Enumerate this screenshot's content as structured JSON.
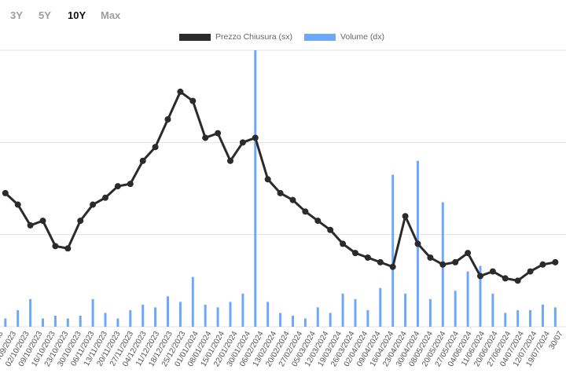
{
  "range_tabs": [
    {
      "label": "3Y",
      "active": false
    },
    {
      "label": "5Y",
      "active": false
    },
    {
      "label": "10Y",
      "active": true
    },
    {
      "label": "Max",
      "active": false
    }
  ],
  "colors": {
    "price": "#2b2b2b",
    "volume": "#6ea8fe",
    "grid": "#e3e3e3",
    "tab_inactive": "#9e9e9e",
    "tab_active": "#111111"
  },
  "chart_data": {
    "type": "line",
    "series": [
      {
        "name": "Prezzo Chiusura (sx)",
        "kind": "line",
        "axis": "left",
        "x": [
          "2023-09-18",
          "2023-09-25",
          "2023-10-02",
          "2023-10-09",
          "2023-10-16",
          "2023-10-23",
          "2023-10-30",
          "2023-11-06",
          "2023-11-13",
          "2023-11-20",
          "2023-11-27",
          "2023-12-04",
          "2023-12-11",
          "2023-12-18",
          "2023-12-25",
          "2024-01-01",
          "2024-01-08",
          "2024-01-15",
          "2024-01-22",
          "2024-01-29",
          "2024-02-05",
          "2024-02-12",
          "2024-02-19",
          "2024-02-26",
          "2024-03-04",
          "2024-03-11",
          "2024-03-18",
          "2024-03-25",
          "2024-04-01",
          "2024-04-08",
          "2024-04-15",
          "2024-04-22",
          "2024-04-29",
          "2024-05-06",
          "2024-05-13",
          "2024-05-20",
          "2024-05-27",
          "2024-06-03",
          "2024-06-10",
          "2024-06-17",
          "2024-06-24",
          "2024-07-01",
          "2024-07-08",
          "2024-07-15",
          "2024-07-22"
        ],
        "values": [
          59,
          56.5,
          52,
          53,
          47.5,
          47,
          53,
          56.5,
          58,
          60.5,
          61,
          66,
          69,
          75,
          81,
          79,
          71,
          72,
          66,
          70,
          71,
          62,
          59,
          57.5,
          55,
          53,
          51,
          48,
          46,
          45,
          44,
          43,
          54,
          48,
          45,
          43.5,
          44,
          46,
          41,
          42,
          40.5,
          40,
          42,
          43.5,
          44
        ]
      },
      {
        "name": "Volume (dx)",
        "kind": "bar",
        "axis": "right",
        "x": [
          "2023-09-18",
          "2023-09-25",
          "2023-10-02",
          "2023-10-09",
          "2023-10-16",
          "2023-10-23",
          "2023-10-30",
          "2023-11-06",
          "2023-11-13",
          "2023-11-20",
          "2023-11-27",
          "2023-12-04",
          "2023-12-11",
          "2023-12-18",
          "2023-12-25",
          "2024-01-01",
          "2024-01-08",
          "2024-01-15",
          "2024-01-22",
          "2024-01-29",
          "2024-02-05",
          "2024-02-12",
          "2024-02-19",
          "2024-02-26",
          "2024-03-04",
          "2024-03-11",
          "2024-03-18",
          "2024-03-25",
          "2024-04-01",
          "2024-04-08",
          "2024-04-15",
          "2024-04-22",
          "2024-04-29",
          "2024-05-06",
          "2024-05-13",
          "2024-05-20",
          "2024-05-27",
          "2024-06-03",
          "2024-06-10",
          "2024-06-17",
          "2024-06-24",
          "2024-07-01",
          "2024-07-08",
          "2024-07-15",
          "2024-07-22"
        ],
        "values": [
          3,
          6,
          10,
          3,
          4,
          3,
          4,
          10,
          5,
          3,
          6,
          8,
          7,
          11,
          9,
          18,
          8,
          7,
          9,
          12,
          100,
          9,
          5,
          4,
          3,
          7,
          5,
          12,
          10,
          6,
          14,
          55,
          12,
          60,
          10,
          45,
          13,
          20,
          22,
          12,
          5,
          6,
          6,
          8,
          7
        ]
      }
    ],
    "x_tick_labels": [
      "/09/2023",
      "25/09/2023",
      "02/10/2023",
      "09/10/2023",
      "16/10/2023",
      "23/10/2023",
      "30/10/2023",
      "06/11/2023",
      "13/11/2023",
      "20/11/2023",
      "27/11/2023",
      "04/12/2023",
      "11/12/2023",
      "18/12/2023",
      "25/12/2023",
      "01/01/2024",
      "08/01/2024",
      "15/01/2024",
      "22/01/2024",
      "30/01/2024",
      "06/02/2024",
      "13/02/2024",
      "20/02/2024",
      "27/02/2024",
      "05/03/2024",
      "12/03/2024",
      "19/03/2024",
      "26/03/2024",
      "02/04/2024",
      "09/04/2024",
      "16/04/2024",
      "23/04/2024",
      "30/04/2024",
      "08/05/2024",
      "20/05/2024",
      "27/05/2024",
      "04/06/2024",
      "11/06/2024",
      "20/06/2024",
      "27/06/2024",
      "04/07/2024",
      "12/07/2024",
      "19/07/2024",
      "30/07"
    ],
    "ylim_left": [
      30,
      90
    ],
    "ylim_right": [
      0,
      100
    ],
    "grid": true,
    "legend_position": "top-center"
  }
}
